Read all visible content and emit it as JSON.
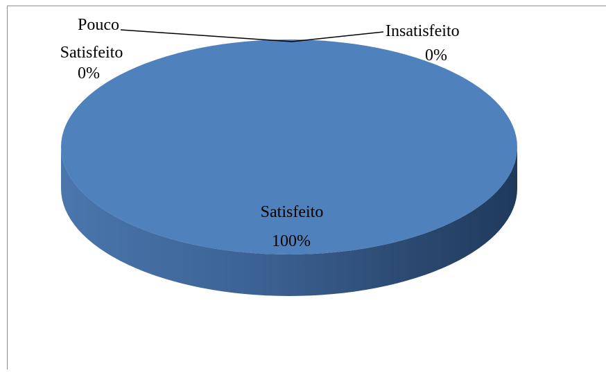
{
  "chart_data": {
    "type": "pie",
    "style": "3d",
    "categories": [
      "Satisfeito",
      "Pouco Satisfeito",
      "Insatisfeito"
    ],
    "values": [
      100,
      0,
      0
    ],
    "value_labels": [
      "100%",
      "0%",
      "0%"
    ],
    "label_lines": {
      "pouco_satisfeito": [
        "Pouco",
        "Satisfeito",
        "0%"
      ],
      "insatisfeito": [
        "Insatisfeito",
        "0%"
      ],
      "satisfeito": [
        "Satisfeito",
        "100%"
      ]
    },
    "legend": "none",
    "colors": {
      "slice": "#4f81bd",
      "side_light": "#4a76ad",
      "side_dark": "#1f3a5c",
      "border": "#8c8c8c",
      "leader_line": "#000000"
    }
  }
}
